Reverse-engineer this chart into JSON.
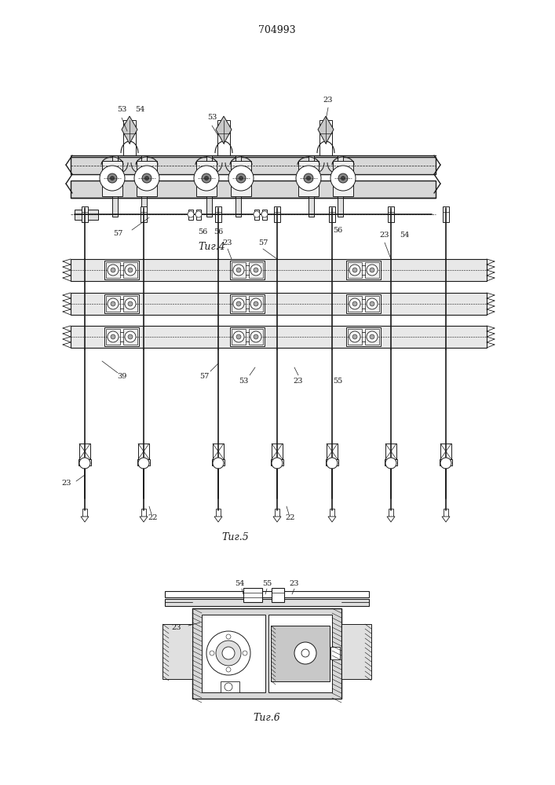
{
  "title": "704993",
  "background_color": "#ffffff",
  "fig_width": 7.07,
  "fig_height": 10.0,
  "dpi": 100,
  "fig4_label": "Τиг.4",
  "fig5_label": "Τиг.5",
  "fig6_label": "Τиг.6",
  "line_color": "#1a1a1a",
  "label_fontsize": 7,
  "figname_fontsize": 9
}
